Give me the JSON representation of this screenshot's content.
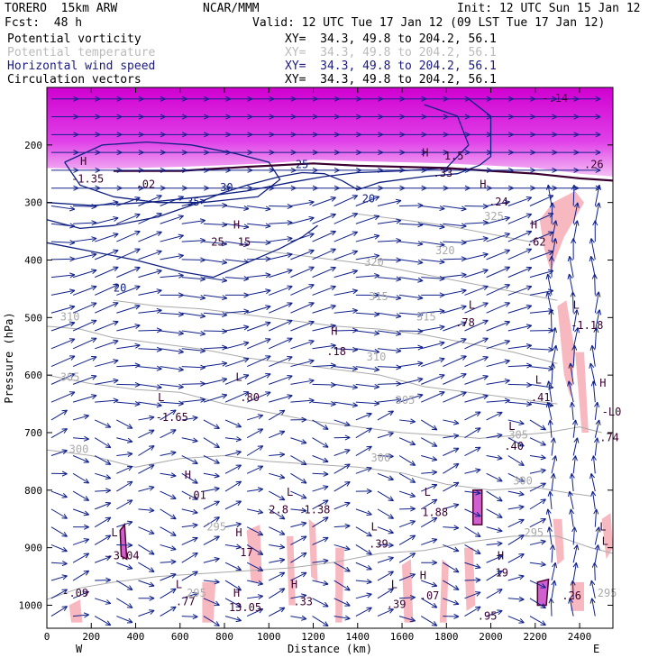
{
  "header": {
    "model": "TORERO  15km ARW",
    "org": "NCAR/MMM",
    "init": "Init: 12 UTC Sun 15 Jan 12",
    "fcst": "Fcst:  48 h",
    "valid": "Valid: 12 UTC Tue 17 Jan 12 (09 LST Tue 17 Jan 12)"
  },
  "fields": [
    {
      "name": "Potential vorticity",
      "xy": "XY=  34.3, 49.8 to 204.2, 56.1",
      "color": "#000000"
    },
    {
      "name": "Potential temperature",
      "xy": "XY=  34.3, 49.8 to 204.2, 56.1",
      "color": "#bbbbbb"
    },
    {
      "name": "Horizontal wind speed",
      "xy": "XY=  34.3, 49.8 to 204.2, 56.1",
      "color": "#1a1a80"
    },
    {
      "name": "Circulation vectors",
      "xy": "XY=  34.3, 49.8 to 204.2, 56.1",
      "color": "#000000"
    }
  ],
  "chart_data": {
    "type": "cross-section",
    "xlabel": "Distance (km)",
    "ylabel": "Pressure (hPa)",
    "xlim": [
      0,
      2550
    ],
    "ylim": [
      1040,
      100
    ],
    "x_ticks": [
      0,
      200,
      400,
      600,
      800,
      1000,
      1200,
      1400,
      1600,
      1800,
      2000,
      2200,
      2400
    ],
    "y_ticks": [
      200,
      300,
      400,
      500,
      600,
      700,
      800,
      900,
      1000
    ],
    "x_end_labels": {
      "left": "W",
      "right": "E"
    },
    "wind_speed_contours": [
      {
        "value": 20,
        "points": [
          [
            0,
            330
          ],
          [
            150,
            345
          ],
          [
            300,
            340
          ],
          [
            500,
            325
          ],
          [
            650,
            305
          ],
          [
            780,
            285
          ],
          [
            900,
            270
          ],
          [
            1050,
            255
          ],
          [
            1150,
            248
          ],
          [
            1250,
            250
          ],
          [
            1330,
            262
          ],
          [
            1400,
            278
          ],
          [
            1500,
            265
          ],
          [
            1700,
            255
          ],
          [
            1850,
            250
          ],
          [
            1950,
            235
          ],
          [
            2000,
            220
          ],
          [
            2000,
            150
          ],
          [
            1900,
            120
          ]
        ]
      },
      {
        "value": 25,
        "points": [
          [
            0,
            300
          ],
          [
            200,
            305
          ],
          [
            450,
            300
          ],
          [
            700,
            290
          ],
          [
            900,
            280
          ],
          [
            1100,
            265
          ],
          [
            1250,
            255
          ],
          [
            1400,
            248
          ],
          [
            1600,
            245
          ],
          [
            1800,
            240
          ],
          [
            1900,
            200
          ],
          [
            1850,
            150
          ],
          [
            1700,
            130
          ]
        ]
      },
      {
        "value": 30,
        "points": [
          [
            80,
            230
          ],
          [
            250,
            200
          ],
          [
            450,
            195
          ],
          [
            650,
            200
          ],
          [
            850,
            215
          ],
          [
            1000,
            230
          ],
          [
            1050,
            260
          ],
          [
            950,
            290
          ],
          [
            700,
            300
          ],
          [
            500,
            300
          ],
          [
            300,
            290
          ],
          [
            150,
            270
          ],
          [
            80,
            230
          ]
        ]
      },
      {
        "value": 20,
        "points": [
          [
            0,
            370
          ],
          [
            200,
            385
          ],
          [
            400,
            400
          ],
          [
            600,
            420
          ],
          [
            750,
            430
          ],
          [
            900,
            405
          ],
          [
            1050,
            380
          ],
          [
            1150,
            360
          ],
          [
            1220,
            340
          ]
        ]
      }
    ],
    "theta_contours": [
      {
        "value": 295,
        "points": [
          [
            0,
            990
          ],
          [
            150,
            970
          ],
          [
            300,
            960
          ],
          [
            500,
            950
          ],
          [
            700,
            945
          ],
          [
            900,
            940
          ],
          [
            1100,
            935
          ],
          [
            1300,
            925
          ],
          [
            1500,
            910
          ],
          [
            1700,
            905
          ],
          [
            1900,
            890
          ],
          [
            2100,
            880
          ],
          [
            2300,
            880
          ],
          [
            2450,
            900
          ],
          [
            2550,
            910
          ]
        ]
      },
      {
        "value": 300,
        "points": [
          [
            0,
            730
          ],
          [
            200,
            740
          ],
          [
            400,
            760
          ],
          [
            600,
            745
          ],
          [
            800,
            740
          ],
          [
            1000,
            750
          ],
          [
            1200,
            755
          ],
          [
            1400,
            760
          ],
          [
            1600,
            770
          ],
          [
            1800,
            790
          ],
          [
            2000,
            800
          ],
          [
            2200,
            795
          ],
          [
            2350,
            805
          ],
          [
            2450,
            810
          ]
        ]
      },
      {
        "value": 305,
        "points": [
          [
            0,
            600
          ],
          [
            200,
            615
          ],
          [
            400,
            625
          ],
          [
            600,
            630
          ],
          [
            800,
            650
          ],
          [
            1000,
            665
          ],
          [
            1200,
            680
          ],
          [
            1400,
            690
          ],
          [
            1600,
            700
          ],
          [
            1800,
            705
          ],
          [
            1950,
            710
          ],
          [
            2100,
            705
          ],
          [
            2250,
            700
          ],
          [
            2400,
            690
          ],
          [
            2500,
            700
          ]
        ]
      },
      {
        "value": 310,
        "points": [
          [
            0,
            515
          ],
          [
            150,
            520
          ],
          [
            300,
            535
          ],
          [
            500,
            545
          ],
          [
            700,
            555
          ],
          [
            900,
            570
          ],
          [
            1100,
            580
          ],
          [
            1300,
            590
          ],
          [
            1500,
            600
          ],
          [
            1700,
            620
          ],
          [
            1900,
            630
          ],
          [
            2100,
            640
          ],
          [
            2300,
            650
          ]
        ]
      },
      {
        "value": 315,
        "points": [
          [
            300,
            470
          ],
          [
            500,
            480
          ],
          [
            700,
            485
          ],
          [
            900,
            495
          ],
          [
            1100,
            505
          ],
          [
            1300,
            515
          ],
          [
            1500,
            520
          ],
          [
            1700,
            530
          ],
          [
            1900,
            545
          ],
          [
            2100,
            560
          ],
          [
            2300,
            580
          ]
        ]
      },
      {
        "value": 320,
        "points": [
          [
            900,
            380
          ],
          [
            1100,
            390
          ],
          [
            1300,
            400
          ],
          [
            1500,
            410
          ],
          [
            1700,
            425
          ],
          [
            1900,
            440
          ],
          [
            2100,
            455
          ],
          [
            2300,
            470
          ]
        ]
      },
      {
        "value": 325,
        "points": [
          [
            1400,
            320
          ],
          [
            1600,
            330
          ],
          [
            1800,
            340
          ],
          [
            2000,
            355
          ],
          [
            2200,
            370
          ]
        ]
      }
    ],
    "theta_labels": [
      {
        "text": "310",
        "x": 60,
        "y": 505
      },
      {
        "text": "305",
        "x": 60,
        "y": 610
      },
      {
        "text": "300",
        "x": 100,
        "y": 735
      },
      {
        "text": "305",
        "x": 1570,
        "y": 650
      },
      {
        "text": "310",
        "x": 1440,
        "y": 575
      },
      {
        "text": "315",
        "x": 1665,
        "y": 505
      },
      {
        "text": "315",
        "x": 1450,
        "y": 470
      },
      {
        "text": "320",
        "x": 1430,
        "y": 410
      },
      {
        "text": "320",
        "x": 1750,
        "y": 390
      },
      {
        "text": "325",
        "x": 1970,
        "y": 330
      },
      {
        "text": "300",
        "x": 1460,
        "y": 750
      },
      {
        "text": "305",
        "x": 2080,
        "y": 710
      },
      {
        "text": "300",
        "x": 2100,
        "y": 790
      },
      {
        "text": "295",
        "x": 2150,
        "y": 880
      },
      {
        "text": "295",
        "x": 2480,
        "y": 985
      },
      {
        "text": "295",
        "x": 720,
        "y": 870
      },
      {
        "text": "295",
        "x": 630,
        "y": 985
      }
    ],
    "speed_labels": [
      {
        "text": "20",
        "x": 300,
        "y": 455
      },
      {
        "text": "20",
        "x": 1420,
        "y": 300
      },
      {
        "text": "25",
        "x": 1120,
        "y": 240
      },
      {
        "text": "30",
        "x": 780,
        "y": 280
      },
      {
        "text": "35",
        "x": 630,
        "y": 305
      }
    ],
    "extrema": [
      {
        "text": "H",
        "x": 150,
        "y": 235
      },
      {
        "text": "-1.35",
        "x": 110,
        "y": 265
      },
      {
        "text": ".02",
        "x": 400,
        "y": 275
      },
      {
        "text": "H",
        "x": 1690,
        "y": 220
      },
      {
        "text": "1.5",
        "x": 1790,
        "y": 225
      },
      {
        "text": ".33",
        "x": 1740,
        "y": 255
      },
      {
        "text": "H",
        "x": 1950,
        "y": 275
      },
      {
        "text": ".24",
        "x": 1990,
        "y": 305
      },
      {
        "text": "H",
        "x": 840,
        "y": 345
      },
      {
        "text": "25",
        "x": 740,
        "y": 375
      },
      {
        "text": "15",
        "x": 860,
        "y": 375
      },
      {
        "text": "H",
        "x": 2180,
        "y": 345
      },
      {
        "text": ".62",
        "x": 2160,
        "y": 375
      },
      {
        "text": "L",
        "x": 1900,
        "y": 485
      },
      {
        "text": ".78",
        "x": 1840,
        "y": 515
      },
      {
        "text": "L",
        "x": 2370,
        "y": 485
      },
      {
        "text": "-1.18",
        "x": 2360,
        "y": 520
      },
      {
        "text": "H",
        "x": 1280,
        "y": 530
      },
      {
        "text": ".18",
        "x": 1260,
        "y": 565
      },
      {
        "text": "L",
        "x": 500,
        "y": 645
      },
      {
        "text": "-1.65",
        "x": 490,
        "y": 680
      },
      {
        "text": "L",
        "x": 850,
        "y": 610
      },
      {
        "text": ".80",
        "x": 870,
        "y": 645
      },
      {
        "text": "L",
        "x": 2200,
        "y": 615
      },
      {
        "text": ".41",
        "x": 2180,
        "y": 645
      },
      {
        "text": "H",
        "x": 2490,
        "y": 620
      },
      {
        "text": "-L0",
        "x": 2500,
        "y": 670
      },
      {
        "text": ".74",
        "x": 2490,
        "y": 715
      },
      {
        "text": "L",
        "x": 2080,
        "y": 695
      },
      {
        "text": ".40",
        "x": 2060,
        "y": 730
      },
      {
        "text": "H",
        "x": 620,
        "y": 780
      },
      {
        "text": ".01",
        "x": 630,
        "y": 815
      },
      {
        "text": "L",
        "x": 1080,
        "y": 810
      },
      {
        "text": "2.8",
        "x": 1000,
        "y": 840
      },
      {
        "text": "-1.38",
        "x": 1130,
        "y": 840
      },
      {
        "text": "L",
        "x": 1700,
        "y": 810
      },
      {
        "text": "1.88",
        "x": 1690,
        "y": 845
      },
      {
        "text": "L",
        "x": 290,
        "y": 880
      },
      {
        "text": "-3.04",
        "x": 270,
        "y": 920
      },
      {
        "text": "H",
        "x": 850,
        "y": 880
      },
      {
        "text": "17",
        "x": 870,
        "y": 915
      },
      {
        "text": "L",
        "x": 1460,
        "y": 870
      },
      {
        "text": ".39",
        "x": 1450,
        "y": 900
      },
      {
        "text": "H",
        "x": 2030,
        "y": 920
      },
      {
        "text": "19",
        "x": 2020,
        "y": 950
      },
      {
        "text": "L",
        "x": 2490,
        "y": 870
      },
      {
        "text": "L",
        "x": 2500,
        "y": 895
      },
      {
        "text": "-.09",
        "x": 70,
        "y": 985
      },
      {
        "text": "L",
        "x": 580,
        "y": 970
      },
      {
        "text": ".77",
        "x": 580,
        "y": 1000
      },
      {
        "text": "H",
        "x": 840,
        "y": 985
      },
      {
        "text": "13.05",
        "x": 820,
        "y": 1010
      },
      {
        "text": "H",
        "x": 1100,
        "y": 970
      },
      {
        "text": ".33",
        "x": 1110,
        "y": 1000
      },
      {
        "text": "L",
        "x": 1550,
        "y": 970
      },
      {
        "text": ".39",
        "x": 1530,
        "y": 1005
      },
      {
        "text": "H",
        "x": 1680,
        "y": 955
      },
      {
        "text": ".07",
        "x": 1680,
        "y": 990
      },
      {
        "text": ".95",
        "x": 1940,
        "y": 1025
      },
      {
        "text": ".26",
        "x": 2320,
        "y": 990
      },
      {
        "text": "-.14",
        "x": 2230,
        "y": 125
      },
      {
        "text": ".26",
        "x": 2420,
        "y": 240
      }
    ],
    "pv_contours": [
      {
        "value": 1.5,
        "points": [
          [
            300,
            245
          ],
          [
            600,
            245
          ],
          [
            900,
            238
          ],
          [
            1200,
            232
          ],
          [
            1400,
            236
          ],
          [
            1600,
            238
          ],
          [
            1800,
            240
          ],
          [
            2000,
            245
          ],
          [
            2200,
            250
          ],
          [
            2400,
            258
          ],
          [
            2550,
            262
          ]
        ]
      }
    ],
    "grid": false
  }
}
